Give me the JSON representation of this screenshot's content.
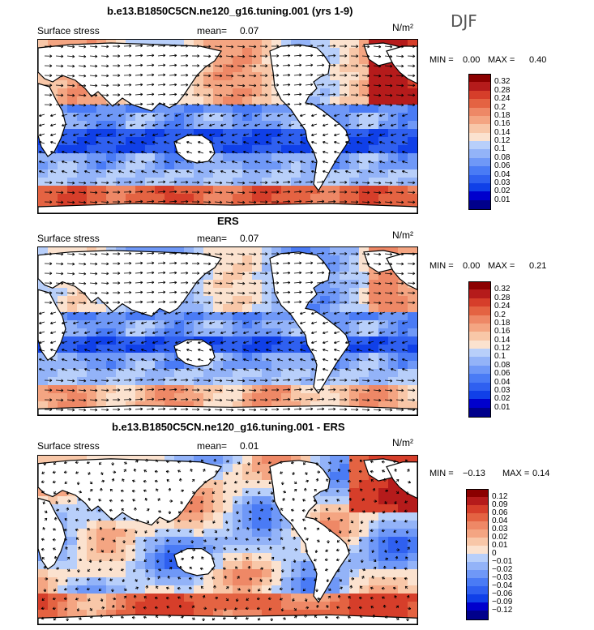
{
  "season": "DJF",
  "units": "N/m²",
  "field_label": "Surface stress",
  "mean_label": "mean=",
  "min_label": "MIN =",
  "max_label": "MAX =",
  "colors": {
    "scale": [
      "#00008b",
      "#0000cd",
      "#1040e8",
      "#2f60f0",
      "#4a7bf5",
      "#6f98f7",
      "#93b3f8",
      "#b8cffa",
      "#e6eef8",
      "#fbe2cf",
      "#f8c7a8",
      "#f4a582",
      "#ee8866",
      "#e46342",
      "#d63e2a",
      "#b51b1b",
      "#8b0000"
    ]
  },
  "panels": [
    {
      "title": "b.e13.B1850C5CN.ne120_g16.tuning.001 (yrs 1-9)",
      "mean": "0.07",
      "min": "0.00",
      "max": "0.40",
      "levels": [
        "0.32",
        "0.28",
        "0.24",
        "0.2",
        "0.18",
        "0.16",
        "0.14",
        "0.12",
        "0.1",
        "0.08",
        "0.06",
        "0.04",
        "0.03",
        "0.02",
        "0.01"
      ]
    },
    {
      "title": "ERS",
      "mean": "0.07",
      "min": "0.00",
      "max": "0.21",
      "levels": [
        "0.32",
        "0.28",
        "0.24",
        "0.2",
        "0.18",
        "0.16",
        "0.14",
        "0.12",
        "0.1",
        "0.08",
        "0.06",
        "0.04",
        "0.03",
        "0.02",
        "0.01"
      ]
    },
    {
      "title": "b.e13.B1850C5CN.ne120_g16.tuning.001 - ERS",
      "mean": "0.01",
      "min": "−0.13",
      "max": "0.14",
      "levels": [
        "0.12",
        "0.09",
        "0.06",
        "0.04",
        "0.03",
        "0.02",
        "0.01",
        "0",
        "−0.01",
        "−0.02",
        "−0.03",
        "−0.04",
        "−0.06",
        "−0.09",
        "−0.12"
      ]
    }
  ],
  "chart_data": [
    {
      "type": "heatmap",
      "title": "b.e13.B1850C5CN.ne120_g16.tuning.001 (yrs 1-9)",
      "variable": "Surface stress",
      "units": "N/m²",
      "season": "DJF",
      "mean": 0.07,
      "min": 0.0,
      "max": 0.4,
      "contour_levels": [
        0.32,
        0.28,
        0.24,
        0.2,
        0.18,
        0.16,
        0.14,
        0.12,
        0.1,
        0.08,
        0.06,
        0.04,
        0.03,
        0.02,
        0.01
      ]
    },
    {
      "type": "heatmap",
      "title": "ERS",
      "variable": "Surface stress",
      "units": "N/m²",
      "season": "DJF",
      "mean": 0.07,
      "min": 0.0,
      "max": 0.21,
      "contour_levels": [
        0.32,
        0.28,
        0.24,
        0.2,
        0.18,
        0.16,
        0.14,
        0.12,
        0.1,
        0.08,
        0.06,
        0.04,
        0.03,
        0.02,
        0.01
      ]
    },
    {
      "type": "heatmap",
      "title": "b.e13.B1850C5CN.ne120_g16.tuning.001 - ERS",
      "variable": "Surface stress",
      "units": "N/m²",
      "season": "DJF",
      "mean": 0.01,
      "min": -0.13,
      "max": 0.14,
      "contour_levels": [
        0.12,
        0.09,
        0.06,
        0.04,
        0.03,
        0.02,
        0.01,
        0,
        -0.01,
        -0.02,
        -0.03,
        -0.04,
        -0.06,
        -0.09,
        -0.12
      ]
    }
  ]
}
